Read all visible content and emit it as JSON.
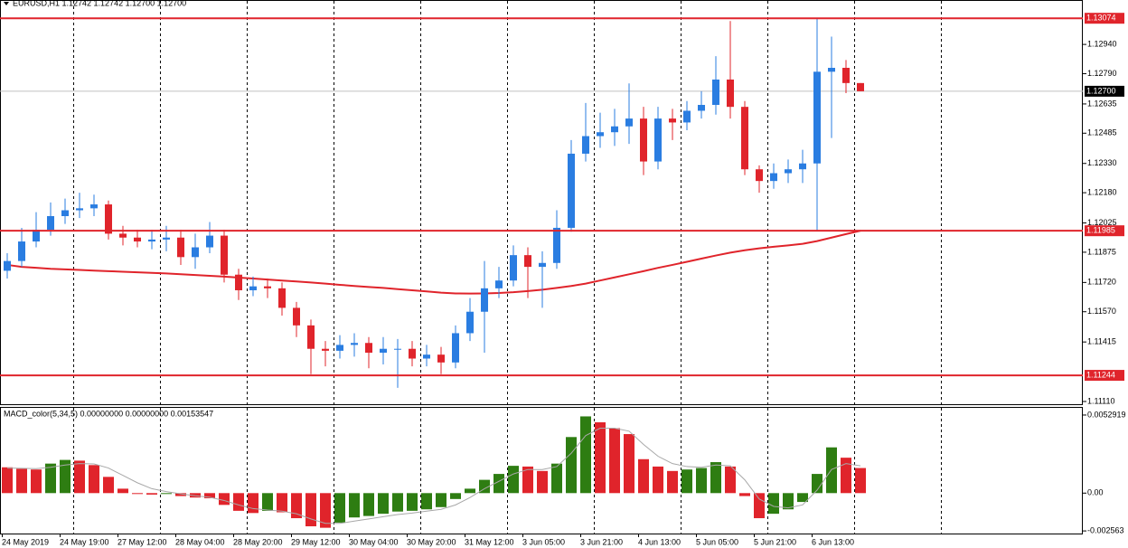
{
  "chart_data": [
    {
      "type": "candlestick",
      "title": "EURUSD,H1  1.12742 1.12742 1.12700 1.12700",
      "open": [
        1.1178,
        1.1183,
        1.1193,
        1.1199,
        1.1206,
        1.1209,
        1.121,
        1.1212,
        1.1197,
        1.1195,
        1.1193,
        1.1194,
        1.1195,
        1.1185,
        1.119,
        1.1196,
        1.1176,
        1.1168,
        1.117,
        1.1169,
        1.1159,
        1.115,
        1.1138,
        1.1137,
        1.114,
        1.1141,
        1.1136,
        1.1138,
        1.1138,
        1.1133,
        1.1135,
        1.1131,
        1.1146,
        1.1157,
        1.1169,
        1.1173,
        1.1186,
        1.118,
        1.1182,
        1.12,
        1.1238,
        1.1247,
        1.1249,
        1.1252,
        1.1256,
        1.1234,
        1.1256,
        1.1254,
        1.126,
        1.1263,
        1.1276,
        1.1262,
        1.123,
        1.1224,
        1.1228,
        1.123,
        1.1233,
        1.128,
        1.1282,
        1.12742
      ],
      "high": [
        1.1187,
        1.12,
        1.1208,
        1.1213,
        1.1215,
        1.1218,
        1.1217,
        1.1214,
        1.1201,
        1.1199,
        1.1199,
        1.1201,
        1.1199,
        1.1197,
        1.1203,
        1.1199,
        1.1179,
        1.1175,
        1.1174,
        1.1172,
        1.1162,
        1.1153,
        1.1142,
        1.1145,
        1.1146,
        1.1144,
        1.1144,
        1.1143,
        1.1142,
        1.114,
        1.1139,
        1.115,
        1.1164,
        1.1183,
        1.118,
        1.1191,
        1.119,
        1.1188,
        1.1209,
        1.1245,
        1.1264,
        1.1259,
        1.1261,
        1.1274,
        1.1262,
        1.1262,
        1.1261,
        1.1265,
        1.127,
        1.1288,
        1.1306,
        1.1265,
        1.1232,
        1.1233,
        1.1235,
        1.124,
        1.13074,
        1.1298,
        1.1286,
        1.12742
      ],
      "low": [
        1.1174,
        1.118,
        1.119,
        1.1196,
        1.1202,
        1.1205,
        1.1206,
        1.1194,
        1.1191,
        1.119,
        1.1189,
        1.1188,
        1.1181,
        1.1179,
        1.1187,
        1.1172,
        1.1163,
        1.1165,
        1.1164,
        1.1155,
        1.1144,
        1.1125,
        1.1129,
        1.1133,
        1.1134,
        1.1128,
        1.113,
        1.1118,
        1.1129,
        1.1129,
        1.1125,
        1.1128,
        1.1142,
        1.1136,
        1.1164,
        1.117,
        1.1164,
        1.1159,
        1.1179,
        1.1198,
        1.1234,
        1.1241,
        1.1242,
        1.1243,
        1.1227,
        1.123,
        1.1245,
        1.125,
        1.1256,
        1.1258,
        1.1256,
        1.1227,
        1.1218,
        1.122,
        1.1223,
        1.1223,
        1.11985,
        1.1246,
        1.1269,
        1.127
      ],
      "close": [
        1.1183,
        1.1193,
        1.1199,
        1.1206,
        1.1209,
        1.121,
        1.1212,
        1.1197,
        1.1195,
        1.1193,
        1.1194,
        1.1195,
        1.1185,
        1.119,
        1.1196,
        1.1176,
        1.1168,
        1.117,
        1.1169,
        1.1159,
        1.115,
        1.1138,
        1.1137,
        1.114,
        1.1141,
        1.1136,
        1.1138,
        1.1138,
        1.1133,
        1.1135,
        1.1131,
        1.1146,
        1.1157,
        1.1169,
        1.1173,
        1.1186,
        1.118,
        1.1182,
        1.12,
        1.1238,
        1.1247,
        1.1249,
        1.1252,
        1.1256,
        1.1234,
        1.1256,
        1.1254,
        1.126,
        1.1263,
        1.1276,
        1.1262,
        1.123,
        1.1224,
        1.1228,
        1.123,
        1.1233,
        1.128,
        1.1282,
        1.12742,
        1.127
      ],
      "up_color": "#2a7de1",
      "down_color": "#e0242b",
      "moving_average": {
        "color": "#e0242b",
        "values": [
          1.1181,
          1.118,
          1.11795,
          1.1179,
          1.11787,
          1.11784,
          1.11781,
          1.11778,
          1.11775,
          1.11772,
          1.11769,
          1.11766,
          1.11762,
          1.11758,
          1.11754,
          1.1175,
          1.11745,
          1.1174,
          1.11735,
          1.1173,
          1.11725,
          1.1172,
          1.11714,
          1.11708,
          1.11702,
          1.11697,
          1.11692,
          1.11686,
          1.1168,
          1.11674,
          1.11668,
          1.11664,
          1.11663,
          1.11664,
          1.11666,
          1.1167,
          1.11676,
          1.11683,
          1.11692,
          1.11702,
          1.11714,
          1.1173,
          1.11746,
          1.11762,
          1.11778,
          1.11795,
          1.1181,
          1.11826,
          1.11842,
          1.11858,
          1.11873,
          1.11885,
          1.11895,
          1.11903,
          1.1191,
          1.11918,
          1.11932,
          1.1195,
          1.11968,
          1.11985
        ]
      },
      "ylim": [
        1.11096,
        1.13163
      ],
      "yticks": [
        {
          "value": 1.1294,
          "label": "1.12940"
        },
        {
          "value": 1.1279,
          "label": "1.12790"
        },
        1.12635,
        1.12485,
        {
          "value": 1.1233,
          "label": "1.12330"
        },
        {
          "value": 1.1218,
          "label": "1.12180"
        },
        1.12025,
        1.11875,
        {
          "value": 1.1172,
          "label": "1.11720"
        },
        {
          "value": 1.1157,
          "label": "1.11570"
        },
        1.11415,
        {
          "value": 1.1111,
          "label": "1.11110"
        }
      ],
      "levels": [
        1.13074,
        1.11985,
        1.11244
      ],
      "level_color": "#e0242b",
      "current_price": {
        "value": 1.127,
        "label": "1.12700"
      },
      "time_labels": [
        "24 May 2019",
        "24 May 19:00",
        "27 May 12:00",
        "28 May 04:00",
        "28 May 20:00",
        "29 May 12:00",
        "30 May 04:00",
        "30 May 20:00",
        "31 May 12:00",
        "3 Jun 05:00",
        "3 Jun 21:00",
        "4 Jun 13:00",
        "5 Jun 05:00",
        "5 Jun 21:00",
        "6 Jun 13:00"
      ]
    },
    {
      "type": "bar",
      "title": "MACD_color(5,34,5) 0.00000000 0.00000000 0.00153547",
      "values": [
        0.00175,
        0.00165,
        0.0016,
        0.002,
        0.00225,
        0.0022,
        0.0019,
        0.0011,
        0.0003,
        -5e-05,
        -0.0001,
        -5e-05,
        -0.0002,
        -0.0003,
        -0.00035,
        -0.0008,
        -0.0012,
        -0.00135,
        -0.0012,
        -0.0013,
        -0.0017,
        -0.00225,
        -0.00235,
        -0.002,
        -0.00165,
        -0.00155,
        -0.0014,
        -0.00125,
        -0.0012,
        -0.0011,
        -0.00095,
        -0.0004,
        0.0003,
        0.0009,
        0.0013,
        0.00185,
        0.0018,
        0.0015,
        0.002,
        0.0038,
        0.0052,
        0.0048,
        0.0044,
        0.004,
        0.0023,
        0.0018,
        0.0015,
        0.0016,
        0.0017,
        0.0021,
        0.0018,
        -0.0002,
        -0.0017,
        -0.0014,
        -0.0011,
        -0.0006,
        0.0013,
        0.0031,
        0.0024,
        0.0017
      ],
      "signal": [
        0.0017,
        0.00168,
        0.00166,
        0.00175,
        0.0019,
        0.002,
        0.00198,
        0.0017,
        0.0012,
        0.0007,
        0.0003,
        0.0001,
        -5e-05,
        -0.00018,
        -0.00028,
        -0.0005,
        -0.0008,
        -0.00105,
        -0.00115,
        -0.00122,
        -0.0014,
        -0.00175,
        -0.00205,
        -0.00205,
        -0.0019,
        -0.00175,
        -0.0016,
        -0.00145,
        -0.00135,
        -0.00122,
        -0.0011,
        -0.0008,
        -0.0003,
        0.0003,
        0.0008,
        0.0013,
        0.0016,
        0.0016,
        0.0018,
        0.0027,
        0.0039,
        0.0044,
        0.0044,
        0.0042,
        0.0033,
        0.0025,
        0.002,
        0.0018,
        0.00175,
        0.0019,
        0.00185,
        0.0009,
        -0.0004,
        -0.0009,
        -0.001,
        -0.0008,
        0.0002,
        0.0016,
        0.002,
        0.00185
      ],
      "up_color": "#2e7d12",
      "down_color": "#e0242b",
      "signal_color": "#a8a8a8",
      "ylim": [
        -0.00274,
        0.00578
      ],
      "yticks": [
        0.0052919,
        {
          "value": 0,
          "label": "0.00"
        },
        -0.002563
      ]
    }
  ]
}
